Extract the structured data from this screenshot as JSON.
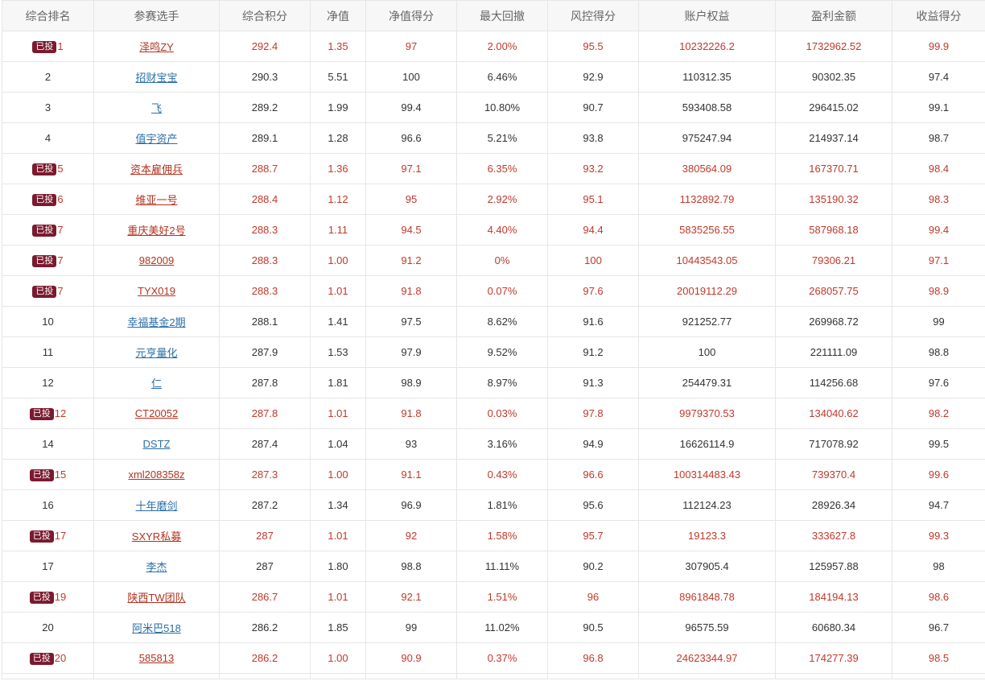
{
  "table": {
    "headers": [
      "综合排名",
      "参赛选手",
      "综合积分",
      "净值",
      "净值得分",
      "最大回撤",
      "风控得分",
      "账户权益",
      "盈利金额",
      "收益得分"
    ],
    "badge_label": "已投",
    "rows": [
      {
        "rank": "1",
        "invested": true,
        "name": "泽鸣ZY",
        "score": "292.4",
        "nav": "1.35",
        "nav_score": "97",
        "max_drawdown": "2.00%",
        "risk_score": "95.5",
        "equity": "10232226.2",
        "profit": "1732962.52",
        "return_score": "99.9"
      },
      {
        "rank": "2",
        "invested": false,
        "name": "招财宝宝",
        "score": "290.3",
        "nav": "5.51",
        "nav_score": "100",
        "max_drawdown": "6.46%",
        "risk_score": "92.9",
        "equity": "110312.35",
        "profit": "90302.35",
        "return_score": "97.4"
      },
      {
        "rank": "3",
        "invested": false,
        "name": "飞",
        "score": "289.2",
        "nav": "1.99",
        "nav_score": "99.4",
        "max_drawdown": "10.80%",
        "risk_score": "90.7",
        "equity": "593408.58",
        "profit": "296415.02",
        "return_score": "99.1"
      },
      {
        "rank": "4",
        "invested": false,
        "name": "值宇资产",
        "score": "289.1",
        "nav": "1.28",
        "nav_score": "96.6",
        "max_drawdown": "5.21%",
        "risk_score": "93.8",
        "equity": "975247.94",
        "profit": "214937.14",
        "return_score": "98.7"
      },
      {
        "rank": "5",
        "invested": true,
        "name": "资本雇佣兵",
        "score": "288.7",
        "nav": "1.36",
        "nav_score": "97.1",
        "max_drawdown": "6.35%",
        "risk_score": "93.2",
        "equity": "380564.09",
        "profit": "167370.71",
        "return_score": "98.4"
      },
      {
        "rank": "6",
        "invested": true,
        "name": "维亚一号",
        "score": "288.4",
        "nav": "1.12",
        "nav_score": "95",
        "max_drawdown": "2.92%",
        "risk_score": "95.1",
        "equity": "1132892.79",
        "profit": "135190.32",
        "return_score": "98.3"
      },
      {
        "rank": "7",
        "invested": true,
        "name": "重庆美好2号",
        "score": "288.3",
        "nav": "1.11",
        "nav_score": "94.5",
        "max_drawdown": "4.40%",
        "risk_score": "94.4",
        "equity": "5835256.55",
        "profit": "587968.18",
        "return_score": "99.4"
      },
      {
        "rank": "7",
        "invested": true,
        "name": "982009",
        "score": "288.3",
        "nav": "1.00",
        "nav_score": "91.2",
        "max_drawdown": "0%",
        "risk_score": "100",
        "equity": "10443543.05",
        "profit": "79306.21",
        "return_score": "97.1"
      },
      {
        "rank": "7",
        "invested": true,
        "name": "TYX019",
        "score": "288.3",
        "nav": "1.01",
        "nav_score": "91.8",
        "max_drawdown": "0.07%",
        "risk_score": "97.6",
        "equity": "20019112.29",
        "profit": "268057.75",
        "return_score": "98.9"
      },
      {
        "rank": "10",
        "invested": false,
        "name": "幸福基金2期",
        "score": "288.1",
        "nav": "1.41",
        "nav_score": "97.5",
        "max_drawdown": "8.62%",
        "risk_score": "91.6",
        "equity": "921252.77",
        "profit": "269968.72",
        "return_score": "99"
      },
      {
        "rank": "11",
        "invested": false,
        "name": "元亨量化",
        "score": "287.9",
        "nav": "1.53",
        "nav_score": "97.9",
        "max_drawdown": "9.52%",
        "risk_score": "91.2",
        "equity": "100",
        "profit": "221111.09",
        "return_score": "98.8"
      },
      {
        "rank": "12",
        "invested": false,
        "name": "仁",
        "score": "287.8",
        "nav": "1.81",
        "nav_score": "98.9",
        "max_drawdown": "8.97%",
        "risk_score": "91.3",
        "equity": "254479.31",
        "profit": "114256.68",
        "return_score": "97.6"
      },
      {
        "rank": "12",
        "invested": true,
        "name": "CT20052",
        "score": "287.8",
        "nav": "1.01",
        "nav_score": "91.8",
        "max_drawdown": "0.03%",
        "risk_score": "97.8",
        "equity": "9979370.53",
        "profit": "134040.62",
        "return_score": "98.2"
      },
      {
        "rank": "14",
        "invested": false,
        "name": "DSTZ",
        "score": "287.4",
        "nav": "1.04",
        "nav_score": "93",
        "max_drawdown": "3.16%",
        "risk_score": "94.9",
        "equity": "16626114.9",
        "profit": "717078.92",
        "return_score": "99.5"
      },
      {
        "rank": "15",
        "invested": true,
        "name": "xml208358z",
        "score": "287.3",
        "nav": "1.00",
        "nav_score": "91.1",
        "max_drawdown": "0.43%",
        "risk_score": "96.6",
        "equity": "100314483.43",
        "profit": "739370.4",
        "return_score": "99.6"
      },
      {
        "rank": "16",
        "invested": false,
        "name": "十年磨剑",
        "score": "287.2",
        "nav": "1.34",
        "nav_score": "96.9",
        "max_drawdown": "1.81%",
        "risk_score": "95.6",
        "equity": "112124.23",
        "profit": "28926.34",
        "return_score": "94.7"
      },
      {
        "rank": "17",
        "invested": true,
        "name": "SXYR私募",
        "score": "287",
        "nav": "1.01",
        "nav_score": "92",
        "max_drawdown": "1.58%",
        "risk_score": "95.7",
        "equity": "19123.3",
        "profit": "333627.8",
        "return_score": "99.3"
      },
      {
        "rank": "17",
        "invested": false,
        "name": "李杰",
        "score": "287",
        "nav": "1.80",
        "nav_score": "98.8",
        "max_drawdown": "11.11%",
        "risk_score": "90.2",
        "equity": "307905.4",
        "profit": "125957.88",
        "return_score": "98"
      },
      {
        "rank": "19",
        "invested": true,
        "name": "陕西TW团队",
        "score": "286.7",
        "nav": "1.01",
        "nav_score": "92.1",
        "max_drawdown": "1.51%",
        "risk_score": "96",
        "equity": "8961848.78",
        "profit": "184194.13",
        "return_score": "98.6"
      },
      {
        "rank": "20",
        "invested": false,
        "name": "阿米巴518",
        "score": "286.2",
        "nav": "1.85",
        "nav_score": "99",
        "max_drawdown": "11.02%",
        "risk_score": "90.5",
        "equity": "96575.59",
        "profit": "60680.34",
        "return_score": "96.7"
      },
      {
        "rank": "20",
        "invested": true,
        "name": "585813",
        "score": "286.2",
        "nav": "1.00",
        "nav_score": "90.9",
        "max_drawdown": "0.37%",
        "risk_score": "96.8",
        "equity": "24623344.97",
        "profit": "174277.39",
        "return_score": "98.5"
      }
    ]
  },
  "colors": {
    "invested_text": "#c0392b",
    "link": "#2a6fa8",
    "badge_bg": "#7a1a2e",
    "header_bg": "#f7f7f7",
    "border": "#e6e6e6"
  }
}
